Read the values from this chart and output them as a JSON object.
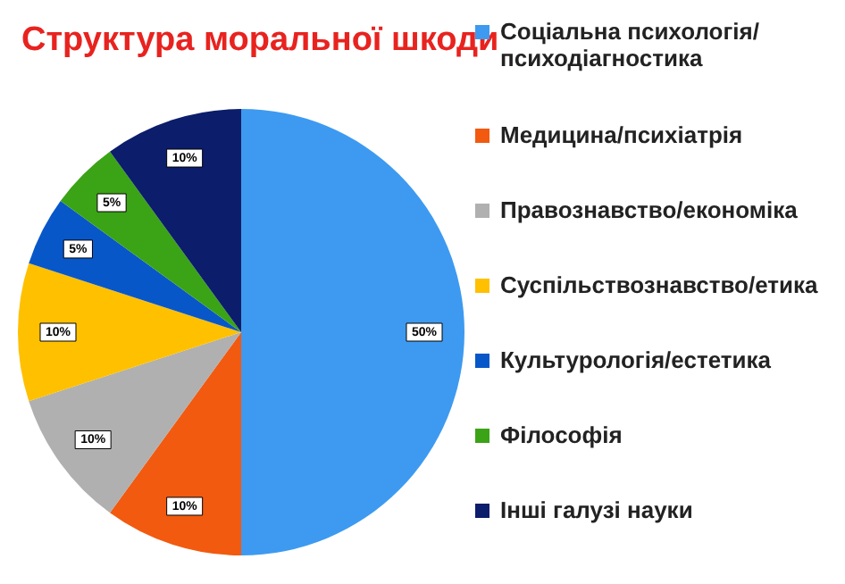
{
  "chart_data": {
    "type": "pie",
    "title": "Структура моральної шкоди",
    "categories": [
      "Соціальна психологія/психодіагностика",
      "Медицина/психіатрія",
      "Правознавство/економіка",
      "Суспільствознавство/етика",
      "Культурологія/естетика",
      "Філософія",
      "Інші галузі науки"
    ],
    "values": [
      50,
      10,
      10,
      10,
      5,
      5,
      10
    ],
    "colors": [
      "#3d9af0",
      "#f25a10",
      "#b0b0b0",
      "#ffc000",
      "#0757c9",
      "#3ba316",
      "#0b1d6b"
    ],
    "value_labels": [
      "50%",
      "10%",
      "10%",
      "10%",
      "5%",
      "5%",
      "10%"
    ],
    "legend": "right"
  }
}
